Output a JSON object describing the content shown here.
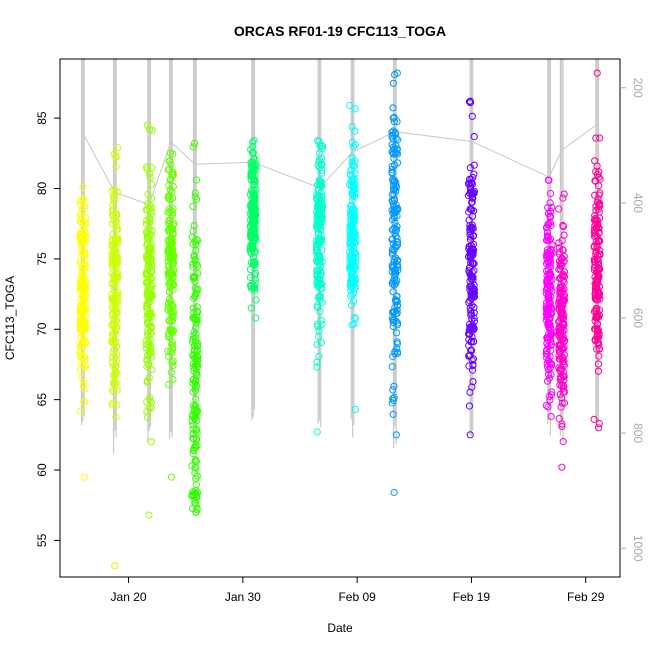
{
  "chart_data": {
    "type": "scatter",
    "title": "ORCAS RF01-19 CFC113_TOGA",
    "xlabel": "Date",
    "ylabel": "CFC113_TOGA",
    "x_axis": {
      "type": "date",
      "range": [
        "2016-01-14",
        "2016-03-03"
      ],
      "ticks": [
        {
          "date": "2016-01-20",
          "label": "Jan 20"
        },
        {
          "date": "2016-01-30",
          "label": "Jan 30"
        },
        {
          "date": "2016-02-09",
          "label": "Feb 09"
        },
        {
          "date": "2016-02-19",
          "label": "Feb 19"
        },
        {
          "date": "2016-02-29",
          "label": "Feb 29"
        }
      ]
    },
    "y_axis": {
      "range": [
        52.4,
        89.2
      ],
      "ticks": [
        55,
        60,
        65,
        70,
        75,
        80,
        85
      ]
    },
    "y2_axis": {
      "label": "",
      "reversed": true,
      "range": [
        1050,
        150
      ],
      "ticks": [
        200,
        400,
        600,
        800,
        1000
      ],
      "color": "#aaaaaa"
    },
    "grid": false,
    "legend": "none",
    "flights": [
      {
        "date": "2016-01-16.0",
        "min": 59.5,
        "max": 80.1,
        "median": 72.5,
        "spread": 3.2,
        "color": "#FFFF00"
      },
      {
        "date": "2016-01-18.8",
        "min": 53.2,
        "max": 82.9,
        "median": 72.8,
        "spread": 4.0,
        "color": "#CCFF00"
      },
      {
        "date": "2016-01-21.8",
        "min": 56.8,
        "max": 84.5,
        "median": 73.5,
        "spread": 4.2,
        "color": "#99FF00"
      },
      {
        "date": "2016-01-23.7",
        "min": 59.5,
        "max": 82.5,
        "median": 75.0,
        "spread": 3.5,
        "color": "#66FF00"
      },
      {
        "date": "2016-01-25.8",
        "min": 57.0,
        "max": 83.2,
        "median": 67.0,
        "spread": 6.5,
        "color": "#33FF00"
      },
      {
        "date": "2016-01-30.9",
        "min": 70.8,
        "max": 83.4,
        "median": 78.0,
        "spread": 2.6,
        "color": "#00FF66"
      },
      {
        "date": "2016-02-05.7",
        "min": 62.7,
        "max": 83.4,
        "median": 76.5,
        "spread": 3.4,
        "color": "#00FFCC"
      },
      {
        "date": "2016-02-08.6",
        "min": 64.3,
        "max": 85.9,
        "median": 76.5,
        "spread": 2.8,
        "color": "#00FFFF"
      },
      {
        "date": "2016-02-12.3",
        "min": 58.4,
        "max": 88.2,
        "median": 76.0,
        "spread": 5.0,
        "color": "#0099FF"
      },
      {
        "date": "2016-02-19.0",
        "min": 62.5,
        "max": 86.2,
        "median": 75.0,
        "spread": 4.2,
        "color": "#6600FF"
      },
      {
        "date": "2016-02-25.8",
        "min": 63.8,
        "max": 80.6,
        "median": 72.5,
        "spread": 3.4,
        "color": "#FF00FF"
      },
      {
        "date": "2016-02-26.9",
        "min": 60.2,
        "max": 79.6,
        "median": 70.5,
        "spread": 3.6,
        "color": "#FF00CC"
      },
      {
        "date": "2016-03-01.0",
        "min": 63.0,
        "max": 88.2,
        "median": 74.5,
        "spread": 3.6,
        "color": "#FF0099"
      }
    ]
  }
}
